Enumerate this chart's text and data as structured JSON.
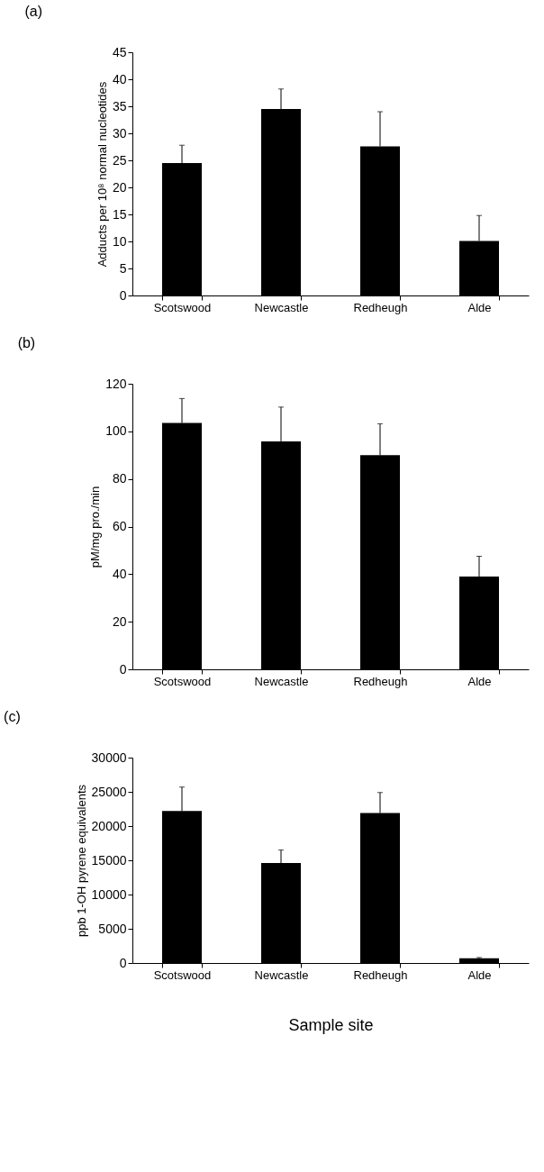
{
  "chart_data": [
    {
      "type": "bar",
      "title": "(a)",
      "ylabel": "Adducts per 10⁸ normal nucleotides",
      "categories": [
        "Scotswood",
        "Newcastle",
        "Redheugh",
        "Alde"
      ],
      "series": [
        {
          "color": "#000000",
          "values": [
            24.5,
            34.5,
            27.6,
            10.1
          ],
          "errors": [
            [
              24.5,
              27.8
            ],
            [
              34.5,
              38.2
            ],
            [
              27.6,
              34.0
            ],
            [
              10.1,
              14.8
            ]
          ]
        }
      ],
      "ylim": [
        0,
        45
      ],
      "yticks": [
        0,
        5,
        10,
        15,
        20,
        25,
        30,
        35,
        40,
        45
      ],
      "grid": false
    },
    {
      "type": "bar",
      "title": "(b)",
      "ylabel": "pM/mg pro./min",
      "categories": [
        "Scotswood",
        "Newcastle",
        "Redheugh",
        "Alde"
      ],
      "series": [
        {
          "color": "#000000",
          "values": [
            103.5,
            95.8,
            90,
            39
          ],
          "errors": [
            [
              103.5,
              113.8
            ],
            [
              95.8,
              110.2
            ],
            [
              90,
              103.2
            ],
            [
              39,
              47.5
            ]
          ]
        }
      ],
      "ylim": [
        0,
        120
      ],
      "yticks": [
        0,
        20,
        40,
        60,
        80,
        100,
        120
      ],
      "grid": false
    },
    {
      "type": "bar",
      "title": "(c)",
      "ylabel": "ppb 1-OH pyrene equivalents",
      "xlabel": "Sample site",
      "categories": [
        "Scotswood",
        "Newcastle",
        "Redheugh",
        "Alde"
      ],
      "series": [
        {
          "color": "#000000",
          "values": [
            22200,
            14600,
            21900,
            700
          ],
          "errors": [
            [
              22200,
              25700
            ],
            [
              14600,
              16500
            ],
            [
              21900,
              24900
            ],
            [
              700,
              800
            ]
          ]
        }
      ],
      "ylim": [
        0,
        30000
      ],
      "yticks": [
        0,
        5000,
        10000,
        15000,
        20000,
        25000,
        30000
      ],
      "grid": false
    }
  ]
}
